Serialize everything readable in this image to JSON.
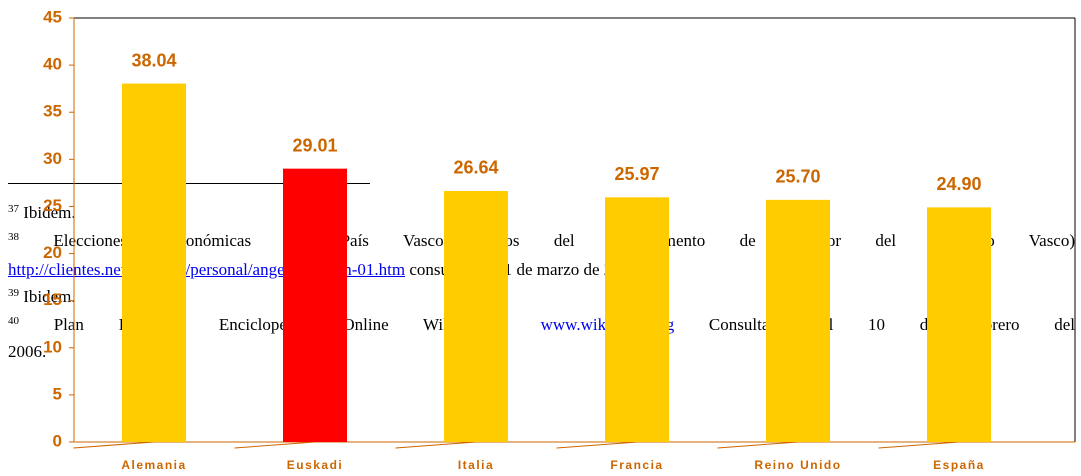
{
  "chart_data": {
    "type": "bar",
    "categories": [
      "Alemania",
      "Euskadi",
      "Italia",
      "Francia",
      "Reino Unido",
      "España"
    ],
    "values": [
      38.04,
      29.01,
      26.64,
      25.97,
      25.7,
      24.9
    ],
    "value_labels": [
      "38.04",
      "29.01",
      "26.64",
      "25.97",
      "25.70",
      "24.90"
    ],
    "colors": [
      "#FFCC00",
      "#FF0000",
      "#FFCC00",
      "#FFCC00",
      "#FFCC00",
      "#FFCC00"
    ],
    "ylim": [
      0,
      45
    ],
    "yticks": [
      0,
      5,
      10,
      15,
      20,
      25,
      30,
      35,
      40,
      45
    ]
  },
  "footnotes": [
    {
      "number": "37",
      "text": "Ibidem."
    },
    {
      "number": "38",
      "text": "Elecciones Autonómicas del País Vasco (datos del Departamento de Interior del Gobierno Vasco)"
    },
    {
      "link": "http://clientes.networks.es/personal/angelpis/auton-01.htm",
      "text_after": "consultado el 1 de marzo de 2006."
    },
    {
      "number": "39",
      "text": "Ibidem."
    },
    {
      "number": "40",
      "text": "Plan Ibarretxe. Enciclopedia Online Wikipedia...",
      "link": "www.wikipedia.org",
      "text_after": "Consultado el 10 de febrero del"
    },
    {
      "text": "2006."
    }
  ]
}
